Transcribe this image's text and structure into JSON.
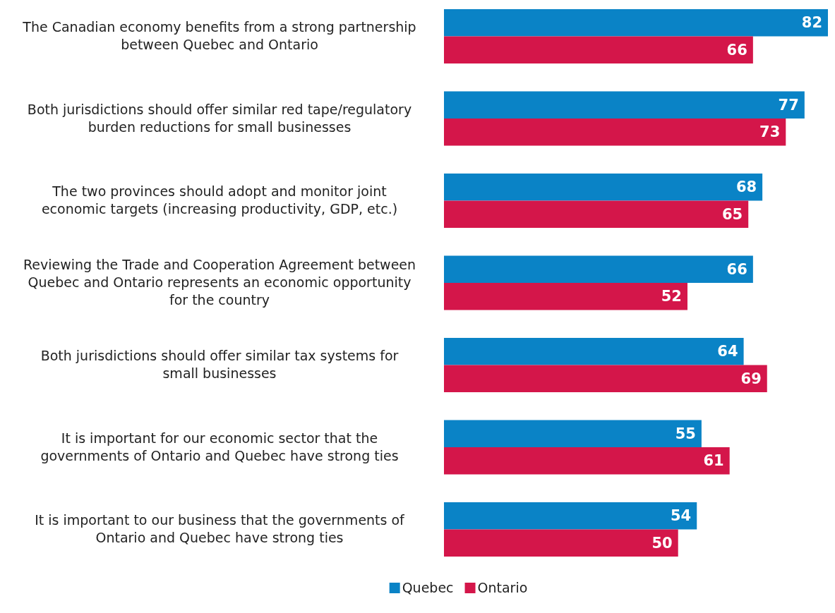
{
  "chart_data": {
    "type": "bar",
    "orientation": "horizontal",
    "categories": [
      "The Canadian economy benefits from a strong partnership between Quebec and Ontario",
      "Both jurisdictions should offer similar red tape/regulatory burden reductions for small businesses",
      "The two provinces should adopt and monitor joint economic targets (increasing productivity, GDP, etc.)",
      "Reviewing the Trade and Cooperation Agreement between Quebec and Ontario represents an economic opportunity for the country",
      "Both jurisdictions should offer similar tax systems for small businesses",
      "It is important for our economic sector that the governments of Ontario and Quebec have strong ties",
      "It is important to our business that the governments of Ontario and Quebec have strong ties"
    ],
    "series": [
      {
        "name": "Quebec",
        "color": "#0a83c6",
        "values": [
          82,
          77,
          68,
          66,
          64,
          55,
          54
        ]
      },
      {
        "name": "Ontario",
        "color": "#d4164a",
        "values": [
          66,
          73,
          65,
          52,
          69,
          61,
          50
        ]
      }
    ],
    "relative": false,
    "data_labels": true,
    "legend": "bottom"
  }
}
